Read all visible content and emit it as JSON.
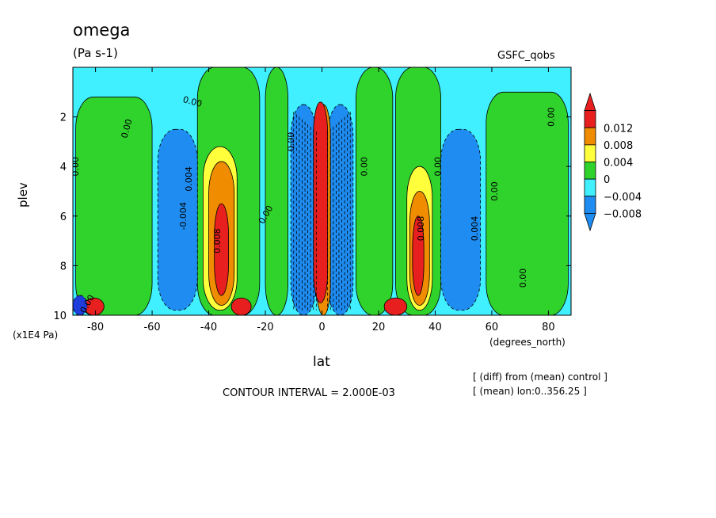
{
  "chart_data": {
    "type": "heatmap",
    "title": "omega",
    "units": "(Pa s-1)",
    "dataset": "GSFC_qobs",
    "xlabel": "lat",
    "ylabel": "plev",
    "x_units": "(degrees_north)",
    "y_units": "(x1E4 Pa)",
    "xlim": [
      -88,
      88
    ],
    "ylim": [
      10,
      0
    ],
    "x_ticks": [
      -80,
      -60,
      -40,
      -20,
      0,
      20,
      40,
      60,
      80
    ],
    "y_ticks": [
      2,
      4,
      6,
      8,
      10
    ],
    "contour_interval_text": "CONTOUR INTERVAL = 2.000E-03",
    "notes": [
      "[ (diff) from (mean) control ]",
      "[ (mean) lon:0..356.25 ]"
    ],
    "legend": {
      "placement": "right",
      "levels": [
        "0.012",
        "0.008",
        "0.004",
        "0",
        "−0.004",
        "−0.008"
      ],
      "colors": [
        "#e81f1f",
        "#f08c00",
        "#ffff3c",
        "#30d22c",
        "#40f0ff",
        "#1e8cf0"
      ]
    },
    "colors": {
      "green": "#30d22c",
      "cyan": "#40f0ff",
      "blue": "#1e8cf0",
      "darkblue": "#1e3cdc",
      "yellow": "#ffff3c",
      "orange": "#f08c00",
      "red": "#e81f1f"
    },
    "regions": [
      {
        "color": "cyan",
        "x": [
          -88,
          88
        ],
        "y": [
          0,
          10
        ]
      },
      {
        "color": "green",
        "x": [
          -87,
          -60
        ],
        "y": [
          1.2,
          10
        ]
      },
      {
        "color": "green",
        "x": [
          -44,
          -22
        ],
        "y": [
          0,
          10
        ]
      },
      {
        "color": "green",
        "x": [
          -20,
          -12
        ],
        "y": [
          0,
          10
        ]
      },
      {
        "color": "green",
        "x": [
          12,
          25
        ],
        "y": [
          0,
          10
        ]
      },
      {
        "color": "green",
        "x": [
          26,
          42
        ],
        "y": [
          0,
          10
        ]
      },
      {
        "color": "green",
        "x": [
          58,
          87
        ],
        "y": [
          1.0,
          10
        ]
      },
      {
        "color": "blue",
        "x": [
          -58,
          -44
        ],
        "y": [
          2.5,
          9.8
        ]
      },
      {
        "color": "blue",
        "x": [
          42,
          56
        ],
        "y": [
          2.5,
          9.8
        ]
      },
      {
        "color": "blue",
        "x": [
          -11,
          -2
        ],
        "y": [
          1.5,
          10
        ]
      },
      {
        "color": "blue",
        "x": [
          2,
          11
        ],
        "y": [
          1.5,
          10
        ]
      },
      {
        "color": "yellow",
        "x": [
          -42,
          -30
        ],
        "y": [
          3.2,
          9.8
        ]
      },
      {
        "color": "orange",
        "x": [
          -40,
          -31
        ],
        "y": [
          3.8,
          9.6
        ]
      },
      {
        "color": "red",
        "x": [
          -38,
          -33
        ],
        "y": [
          5.5,
          9.2
        ]
      },
      {
        "color": "yellow",
        "x": [
          30,
          39
        ],
        "y": [
          4.0,
          9.8
        ]
      },
      {
        "color": "orange",
        "x": [
          31,
          38
        ],
        "y": [
          5.0,
          9.6
        ]
      },
      {
        "color": "red",
        "x": [
          32,
          36
        ],
        "y": [
          6.0,
          9.2
        ]
      },
      {
        "color": "orange",
        "x": [
          -2,
          3
        ],
        "y": [
          1.5,
          10
        ]
      },
      {
        "color": "red",
        "x": [
          -3,
          2
        ],
        "y": [
          1.4,
          9.5
        ]
      },
      {
        "color": "red",
        "x": [
          -84,
          -77
        ],
        "y": [
          9.3,
          10
        ]
      },
      {
        "color": "red",
        "x": [
          -32,
          -25
        ],
        "y": [
          9.3,
          10
        ]
      },
      {
        "color": "red",
        "x": [
          22,
          30
        ],
        "y": [
          9.3,
          10
        ]
      },
      {
        "color": "darkblue",
        "x": [
          -88,
          -83
        ],
        "y": [
          9.2,
          10
        ]
      }
    ],
    "contour_labels": [
      {
        "text": "0.00",
        "x": -46,
        "y": 1.5,
        "angle": 15
      },
      {
        "text": "0.00",
        "x": -68,
        "y": 2.5,
        "angle": -75
      },
      {
        "text": "0.00",
        "x": -86,
        "y": 4.0,
        "angle": -90
      },
      {
        "text": "0.00",
        "x": -82,
        "y": 9.6,
        "angle": -60
      },
      {
        "text": "0.004",
        "x": -46,
        "y": 4.5,
        "angle": -90
      },
      {
        "text": "-0.004",
        "x": -48,
        "y": 6.0,
        "angle": -90
      },
      {
        "text": "0.008",
        "x": -36,
        "y": 7.0,
        "angle": -90
      },
      {
        "text": "0.00",
        "x": -19,
        "y": 6.0,
        "angle": -60
      },
      {
        "text": "0.00",
        "x": -10,
        "y": 3.0,
        "angle": -90
      },
      {
        "text": "0.00",
        "x": 16,
        "y": 4.0,
        "angle": -90
      },
      {
        "text": "0.00",
        "x": 42,
        "y": 4.0,
        "angle": -90
      },
      {
        "text": "0.008",
        "x": 36,
        "y": 6.5,
        "angle": -90
      },
      {
        "text": "0.004",
        "x": 55,
        "y": 6.5,
        "angle": -90
      },
      {
        "text": "0.00",
        "x": 62,
        "y": 5.0,
        "angle": -90
      },
      {
        "text": "0.00",
        "x": 72,
        "y": 8.5,
        "angle": -90
      },
      {
        "text": "0.00",
        "x": 82,
        "y": 2.0,
        "angle": -90
      }
    ]
  }
}
